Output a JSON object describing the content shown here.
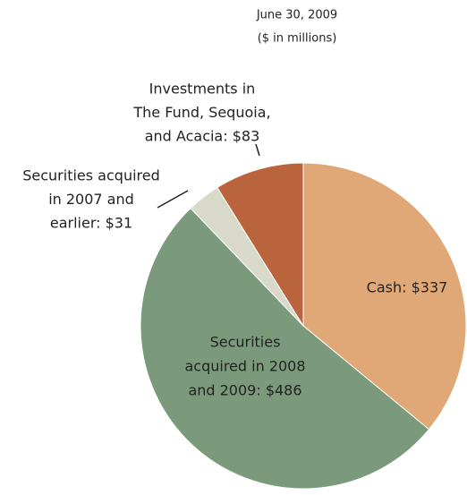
{
  "chart_data": {
    "type": "pie",
    "title": "June 30, 2009",
    "subtitle": "($ in millions)",
    "values": [
      337,
      486,
      31,
      83
    ],
    "value_labels": [
      [
        "Cash: $337"
      ],
      [
        "Securities",
        "acquired in 2008",
        "and 2009: $486"
      ],
      [
        "Securities acquired",
        "in 2007 and",
        "earlier: $31"
      ],
      [
        "Investments  in",
        "The Fund, Sequoia,",
        "and Acacia: $83"
      ]
    ],
    "colors": [
      "#dfa876",
      "#7a9a7b",
      "#d8d9c8",
      "#b9643c"
    ]
  }
}
